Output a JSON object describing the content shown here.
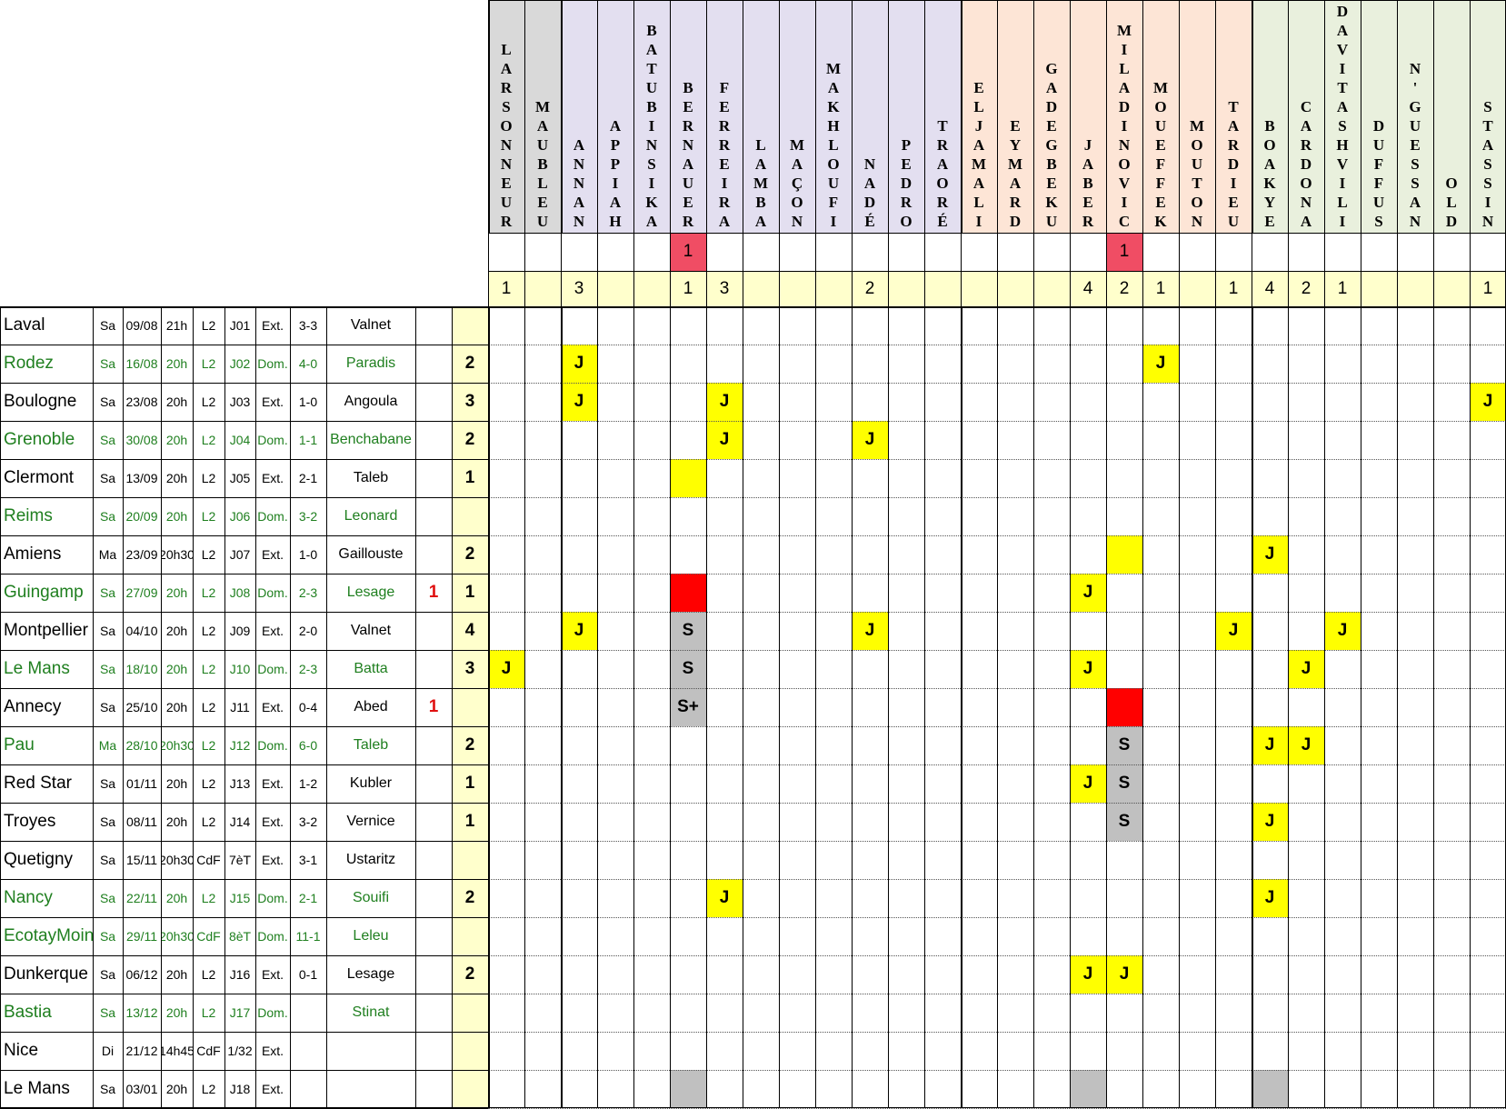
{
  "colors": {
    "group_grey": "#d9d9d9",
    "group_purple": "#e3dff0",
    "group_orange": "#fde5d6",
    "group_green": "#e9f0dd",
    "yellow": "#ffff00",
    "light_yellow": "#ffffcc",
    "pink_red": "#f04d64",
    "red": "#ff0000",
    "grey": "#c0c0c0",
    "home_green": "#1f7f1f"
  },
  "players": [
    {
      "name": "LARSONNEUR",
      "group": "grey",
      "red_row": "",
      "total": "1"
    },
    {
      "name": "MAUBLEU",
      "group": "grey",
      "red_row": "",
      "total": ""
    },
    {
      "name": "ANNAN",
      "group": "purple",
      "red_row": "",
      "total": "3"
    },
    {
      "name": "APPIAH",
      "group": "purple",
      "red_row": "",
      "total": ""
    },
    {
      "name": "BATUBINSIKA",
      "group": "purple",
      "red_row": "",
      "total": ""
    },
    {
      "name": "BERNAUER",
      "group": "purple",
      "red_row": "1",
      "total": "1"
    },
    {
      "name": "FERREIRA",
      "group": "purple",
      "red_row": "",
      "total": "3"
    },
    {
      "name": "LAMBA",
      "group": "purple",
      "red_row": "",
      "total": ""
    },
    {
      "name": "MAÇON",
      "group": "purple",
      "red_row": "",
      "total": ""
    },
    {
      "name": "MAKHLOUFI",
      "group": "purple",
      "red_row": "",
      "total": ""
    },
    {
      "name": "NADÉ",
      "group": "purple",
      "red_row": "",
      "total": "2"
    },
    {
      "name": "PEDRO",
      "group": "purple",
      "red_row": "",
      "total": ""
    },
    {
      "name": "TRAORÉ",
      "group": "purple",
      "red_row": "",
      "total": ""
    },
    {
      "name": "EL JAMALI",
      "group": "orange",
      "red_row": "",
      "total": ""
    },
    {
      "name": "EYMARD",
      "group": "orange",
      "red_row": "",
      "total": ""
    },
    {
      "name": "GADEGBEKU",
      "group": "orange",
      "red_row": "",
      "total": ""
    },
    {
      "name": "JABER",
      "group": "orange",
      "red_row": "",
      "total": "4"
    },
    {
      "name": "MILADINOVIC",
      "group": "orange",
      "red_row": "1",
      "total": "2"
    },
    {
      "name": "MOUEFFEK",
      "group": "orange",
      "red_row": "",
      "total": "1"
    },
    {
      "name": "MOUTON",
      "group": "orange",
      "red_row": "",
      "total": ""
    },
    {
      "name": "TARDIEU",
      "group": "orange",
      "red_row": "",
      "total": "1"
    },
    {
      "name": "BOAKYE",
      "group": "green",
      "red_row": "",
      "total": "4"
    },
    {
      "name": "CARDONA",
      "group": "green",
      "red_row": "",
      "total": "2"
    },
    {
      "name": "DAVITASHVILI",
      "group": "green",
      "red_row": "",
      "total": "1"
    },
    {
      "name": "DUFFUS",
      "group": "green",
      "red_row": "",
      "total": ""
    },
    {
      "name": "N'GUESSAN",
      "group": "green",
      "red_row": "",
      "total": ""
    },
    {
      "name": "OLD",
      "group": "green",
      "red_row": "",
      "total": ""
    },
    {
      "name": "STASSIN",
      "group": "green",
      "red_row": "",
      "total": "1"
    }
  ],
  "matches": [
    {
      "team": "Laval",
      "day": "Sa",
      "date": "09/08",
      "time": "21h",
      "comp": "L2",
      "round": "J01",
      "venue": "Ext.",
      "score": "3-3",
      "referee": "Valnet",
      "reds": "",
      "cards": "",
      "home": false
    },
    {
      "team": "Rodez",
      "day": "Sa",
      "date": "16/08",
      "time": "20h",
      "comp": "L2",
      "round": "J02",
      "venue": "Dom.",
      "score": "4-0",
      "referee": "Paradis",
      "reds": "",
      "cards": "2",
      "home": true
    },
    {
      "team": "Boulogne",
      "day": "Sa",
      "date": "23/08",
      "time": "20h",
      "comp": "L2",
      "round": "J03",
      "venue": "Ext.",
      "score": "1-0",
      "referee": "Angoula",
      "reds": "",
      "cards": "3",
      "home": false
    },
    {
      "team": "Grenoble",
      "day": "Sa",
      "date": "30/08",
      "time": "20h",
      "comp": "L2",
      "round": "J04",
      "venue": "Dom.",
      "score": "1-1",
      "referee": "Benchabane",
      "reds": "",
      "cards": "2",
      "home": true
    },
    {
      "team": "Clermont",
      "day": "Sa",
      "date": "13/09",
      "time": "20h",
      "comp": "L2",
      "round": "J05",
      "venue": "Ext.",
      "score": "2-1",
      "referee": "Taleb",
      "reds": "",
      "cards": "1",
      "home": false
    },
    {
      "team": "Reims",
      "day": "Sa",
      "date": "20/09",
      "time": "20h",
      "comp": "L2",
      "round": "J06",
      "venue": "Dom.",
      "score": "3-2",
      "referee": "Leonard",
      "reds": "",
      "cards": "",
      "home": true
    },
    {
      "team": "Amiens",
      "day": "Ma",
      "date": "23/09",
      "time": "20h30",
      "comp": "L2",
      "round": "J07",
      "venue": "Ext.",
      "score": "1-0",
      "referee": "Gaillouste",
      "reds": "",
      "cards": "2",
      "home": false
    },
    {
      "team": "Guingamp",
      "day": "Sa",
      "date": "27/09",
      "time": "20h",
      "comp": "L2",
      "round": "J08",
      "venue": "Dom.",
      "score": "2-3",
      "referee": "Lesage",
      "reds": "1",
      "cards": "1",
      "home": true
    },
    {
      "team": "Montpellier",
      "day": "Sa",
      "date": "04/10",
      "time": "20h",
      "comp": "L2",
      "round": "J09",
      "venue": "Ext.",
      "score": "2-0",
      "referee": "Valnet",
      "reds": "",
      "cards": "4",
      "home": false
    },
    {
      "team": "Le Mans",
      "day": "Sa",
      "date": "18/10",
      "time": "20h",
      "comp": "L2",
      "round": "J10",
      "venue": "Dom.",
      "score": "2-3",
      "referee": "Batta",
      "reds": "",
      "cards": "3",
      "home": true
    },
    {
      "team": "Annecy",
      "day": "Sa",
      "date": "25/10",
      "time": "20h",
      "comp": "L2",
      "round": "J11",
      "venue": "Ext.",
      "score": "0-4",
      "referee": "Abed",
      "reds": "1",
      "cards": "",
      "home": false
    },
    {
      "team": "Pau",
      "day": "Ma",
      "date": "28/10",
      "time": "20h30",
      "comp": "L2",
      "round": "J12",
      "venue": "Dom.",
      "score": "6-0",
      "referee": "Taleb",
      "reds": "",
      "cards": "2",
      "home": true
    },
    {
      "team": "Red Star",
      "day": "Sa",
      "date": "01/11",
      "time": "20h",
      "comp": "L2",
      "round": "J13",
      "venue": "Ext.",
      "score": "1-2",
      "referee": "Kubler",
      "reds": "",
      "cards": "1",
      "home": false
    },
    {
      "team": "Troyes",
      "day": "Sa",
      "date": "08/11",
      "time": "20h",
      "comp": "L2",
      "round": "J14",
      "venue": "Ext.",
      "score": "3-2",
      "referee": "Vernice",
      "reds": "",
      "cards": "1",
      "home": false
    },
    {
      "team": "Quetigny",
      "day": "Sa",
      "date": "15/11",
      "time": "20h30",
      "comp": "CdF",
      "round": "7èT",
      "venue": "Ext.",
      "score": "3-1",
      "referee": "Ustaritz",
      "reds": "",
      "cards": "",
      "home": false
    },
    {
      "team": "Nancy",
      "day": "Sa",
      "date": "22/11",
      "time": "20h",
      "comp": "L2",
      "round": "J15",
      "venue": "Dom.",
      "score": "2-1",
      "referee": "Souifi",
      "reds": "",
      "cards": "2",
      "home": true
    },
    {
      "team": "EcotayMoingt",
      "day": "Sa",
      "date": "29/11",
      "time": "20h30",
      "comp": "CdF",
      "round": "8èT",
      "venue": "Dom.",
      "score": "11-1",
      "referee": "Leleu",
      "reds": "",
      "cards": "",
      "home": true
    },
    {
      "team": "Dunkerque",
      "day": "Sa",
      "date": "06/12",
      "time": "20h",
      "comp": "L2",
      "round": "J16",
      "venue": "Ext.",
      "score": "0-1",
      "referee": "Lesage",
      "reds": "",
      "cards": "2",
      "home": false
    },
    {
      "team": "Bastia",
      "day": "Sa",
      "date": "13/12",
      "time": "20h",
      "comp": "L2",
      "round": "J17",
      "venue": "Dom.",
      "score": "",
      "referee": "Stinat",
      "reds": "",
      "cards": "",
      "home": true
    },
    {
      "team": "Nice",
      "day": "Di",
      "date": "21/12",
      "time": "14h45",
      "comp": "CdF",
      "round": "1/32",
      "venue": "Ext.",
      "score": "",
      "referee": "",
      "reds": "",
      "cards": "",
      "home": false
    },
    {
      "team": "Le Mans",
      "day": "Sa",
      "date": "03/01",
      "time": "20h",
      "comp": "L2",
      "round": "J18",
      "venue": "Ext.",
      "score": "",
      "referee": "",
      "reds": "",
      "cards": "",
      "home": false
    }
  ],
  "marks": [
    {
      "row": 1,
      "col": 2,
      "text": "J",
      "fill": "yellow"
    },
    {
      "row": 1,
      "col": 18,
      "text": "J",
      "fill": "yellow"
    },
    {
      "row": 2,
      "col": 2,
      "text": "J",
      "fill": "yellow"
    },
    {
      "row": 2,
      "col": 6,
      "text": "J",
      "fill": "yellow"
    },
    {
      "row": 2,
      "col": 27,
      "text": "J",
      "fill": "yellow"
    },
    {
      "row": 3,
      "col": 6,
      "text": "J",
      "fill": "yellow"
    },
    {
      "row": 3,
      "col": 10,
      "text": "J",
      "fill": "yellow"
    },
    {
      "row": 4,
      "col": 5,
      "text": "",
      "fill": "yellow"
    },
    {
      "row": 6,
      "col": 17,
      "text": "",
      "fill": "yellow"
    },
    {
      "row": 6,
      "col": 21,
      "text": "J",
      "fill": "yellow"
    },
    {
      "row": 7,
      "col": 5,
      "text": "",
      "fill": "red"
    },
    {
      "row": 7,
      "col": 16,
      "text": "J",
      "fill": "yellow"
    },
    {
      "row": 8,
      "col": 2,
      "text": "J",
      "fill": "yellow"
    },
    {
      "row": 8,
      "col": 5,
      "text": "S",
      "fill": "grey"
    },
    {
      "row": 8,
      "col": 10,
      "text": "J",
      "fill": "yellow"
    },
    {
      "row": 8,
      "col": 20,
      "text": "J",
      "fill": "yellow"
    },
    {
      "row": 8,
      "col": 23,
      "text": "J",
      "fill": "yellow"
    },
    {
      "row": 9,
      "col": 0,
      "text": "J",
      "fill": "yellow"
    },
    {
      "row": 9,
      "col": 5,
      "text": "S",
      "fill": "grey"
    },
    {
      "row": 9,
      "col": 16,
      "text": "J",
      "fill": "yellow"
    },
    {
      "row": 9,
      "col": 22,
      "text": "J",
      "fill": "yellow"
    },
    {
      "row": 10,
      "col": 5,
      "text": "S+",
      "fill": "grey"
    },
    {
      "row": 10,
      "col": 17,
      "text": "",
      "fill": "red"
    },
    {
      "row": 11,
      "col": 17,
      "text": "S",
      "fill": "grey"
    },
    {
      "row": 11,
      "col": 21,
      "text": "J",
      "fill": "yellow"
    },
    {
      "row": 11,
      "col": 22,
      "text": "J",
      "fill": "yellow"
    },
    {
      "row": 12,
      "col": 16,
      "text": "J",
      "fill": "yellow"
    },
    {
      "row": 12,
      "col": 17,
      "text": "S",
      "fill": "grey"
    },
    {
      "row": 13,
      "col": 17,
      "text": "S",
      "fill": "grey"
    },
    {
      "row": 13,
      "col": 21,
      "text": "J",
      "fill": "yellow"
    },
    {
      "row": 15,
      "col": 6,
      "text": "J",
      "fill": "yellow"
    },
    {
      "row": 15,
      "col": 21,
      "text": "J",
      "fill": "yellow"
    },
    {
      "row": 17,
      "col": 16,
      "text": "J",
      "fill": "yellow"
    },
    {
      "row": 17,
      "col": 17,
      "text": "J",
      "fill": "yellow"
    },
    {
      "row": 20,
      "col": 5,
      "text": "",
      "fill": "grey"
    },
    {
      "row": 20,
      "col": 16,
      "text": "",
      "fill": "grey"
    },
    {
      "row": 20,
      "col": 21,
      "text": "",
      "fill": "grey"
    }
  ]
}
